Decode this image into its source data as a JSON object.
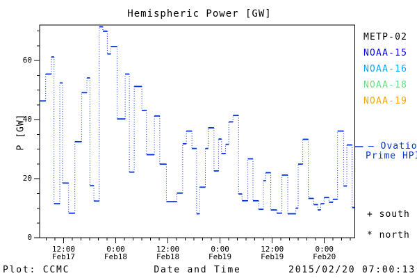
{
  "title": "Hemispheric Power [GW]",
  "y_axis": {
    "label": "P [GW]",
    "major_tick_labels": [
      "0",
      "20",
      "40",
      "60"
    ]
  },
  "x_axis": {
    "label": "Date and Time"
  },
  "legend": {
    "satellites": [
      {
        "label": "METP-02",
        "color": "#000000"
      },
      {
        "label": "NOAA-15",
        "color": "#0000EE"
      },
      {
        "label": "NOAA-16",
        "color": "#00AAFF"
      },
      {
        "label": "NOAA-18",
        "color": "#66E080"
      },
      {
        "label": "NOAA-19",
        "color": "#FFA500"
      }
    ],
    "model_line1": "— Ovation",
    "model_line2": "Prime HPI",
    "marker_south": "+ south",
    "marker_north": "* north"
  },
  "footer": {
    "left": "Plot: CCMC",
    "center": "Date and Time",
    "right": "2015/02/20 07:00:13"
  },
  "colors": {
    "series_blue": "#0033DD",
    "axis_black": "#000000",
    "background": "#FFFFFF"
  },
  "chart_data": {
    "type": "line",
    "subtype": "step-segments-with-dotted-vertical-connectors",
    "title": "Hemispheric Power [GW]",
    "xlabel": "Date and Time",
    "ylabel": "P [GW]",
    "ylim": [
      0,
      72
    ],
    "y_major_ticks": [
      0,
      20,
      40,
      60
    ],
    "y_minor_step": 5,
    "x_hours_range": [
      0,
      72.5
    ],
    "x_minor_step_hours": 2,
    "x_major_ticks": [
      {
        "h": 5.5,
        "time": "12:00",
        "date": "Feb17"
      },
      {
        "h": 17.5,
        "time": "0:00",
        "date": "Feb18"
      },
      {
        "h": 29.5,
        "time": "12:00",
        "date": "Feb18"
      },
      {
        "h": 41.5,
        "time": "0:00",
        "date": "Feb19"
      },
      {
        "h": 53.5,
        "time": "12:00",
        "date": "Feb19"
      },
      {
        "h": 65.5,
        "time": "0:00",
        "date": "Feb20"
      }
    ],
    "legend_position": "right-outside",
    "grid": false,
    "series": [
      {
        "name": "Ovation Prime HPI",
        "color": "#0033DD",
        "segments_h0_h1_gw": [
          [
            0,
            1.39,
            46.3
          ],
          [
            1.39,
            2.72,
            55.4
          ],
          [
            2.72,
            3.31,
            61.2
          ],
          [
            3.31,
            4.64,
            11.5
          ],
          [
            4.64,
            5.28,
            52.4
          ],
          [
            5.28,
            6.67,
            18.5
          ],
          [
            6.67,
            8.11,
            8.3
          ],
          [
            8.11,
            9.65,
            32.5
          ],
          [
            9.65,
            10.88,
            49.1
          ],
          [
            10.88,
            11.57,
            54.1
          ],
          [
            11.57,
            12.48,
            17.6
          ],
          [
            12.48,
            13.71,
            12.4
          ],
          [
            13.71,
            14.56,
            71.4
          ],
          [
            14.56,
            15.57,
            69.9
          ],
          [
            15.57,
            16.37,
            62.2
          ],
          [
            16.37,
            17.81,
            64.7
          ],
          [
            17.81,
            19.68,
            40.2
          ],
          [
            19.68,
            20.64,
            55.4
          ],
          [
            20.64,
            21.76,
            22.2
          ],
          [
            21.76,
            23.52,
            51.2
          ],
          [
            23.52,
            24.59,
            43.1
          ],
          [
            24.59,
            26.4,
            28.1
          ],
          [
            26.4,
            27.63,
            41.2
          ],
          [
            27.63,
            29.17,
            24.9
          ],
          [
            29.17,
            31.57,
            12.2
          ],
          [
            31.57,
            32.91,
            15.1
          ],
          [
            32.91,
            33.76,
            31.8
          ],
          [
            33.76,
            35.04,
            36.1
          ],
          [
            35.04,
            36.11,
            30.2
          ],
          [
            36.11,
            36.8,
            8.1
          ],
          [
            36.8,
            38.13,
            17.1
          ],
          [
            38.13,
            38.77,
            30.2
          ],
          [
            38.77,
            40.11,
            37.2
          ],
          [
            40.11,
            41.17,
            22.6
          ],
          [
            41.17,
            41.84,
            33.4
          ],
          [
            41.84,
            42.77,
            28.5
          ],
          [
            42.77,
            43.52,
            31.6
          ],
          [
            43.52,
            44.48,
            39.2
          ],
          [
            44.48,
            45.76,
            41.4
          ],
          [
            45.76,
            46.56,
            14.8
          ],
          [
            46.56,
            47.89,
            12.5
          ],
          [
            47.89,
            49.07,
            26.7
          ],
          [
            49.07,
            50.4,
            12.5
          ],
          [
            50.4,
            51.47,
            9.6
          ],
          [
            51.47,
            52,
            19.3
          ],
          [
            52,
            53.17,
            22
          ],
          [
            53.17,
            54.56,
            9.4
          ],
          [
            54.56,
            55.73,
            8.3
          ],
          [
            55.73,
            57.07,
            21.2
          ],
          [
            57.07,
            58.93,
            8.1
          ],
          [
            58.93,
            59.47,
            10
          ],
          [
            59.47,
            60.53,
            24.9
          ],
          [
            60.53,
            61.81,
            33.3
          ],
          [
            61.81,
            63.04,
            13.3
          ],
          [
            63.04,
            64,
            11.2
          ],
          [
            64,
            64.64,
            9.4
          ],
          [
            64.64,
            65.44,
            11.5
          ],
          [
            65.44,
            66.56,
            13.6
          ],
          [
            66.56,
            67.47,
            12
          ],
          [
            67.47,
            68.53,
            13
          ],
          [
            68.53,
            69.92,
            36.1
          ],
          [
            69.92,
            70.67,
            17.5
          ],
          [
            70.67,
            71.89,
            31.4
          ],
          [
            71.89,
            72.5,
            10.2
          ]
        ]
      }
    ]
  }
}
